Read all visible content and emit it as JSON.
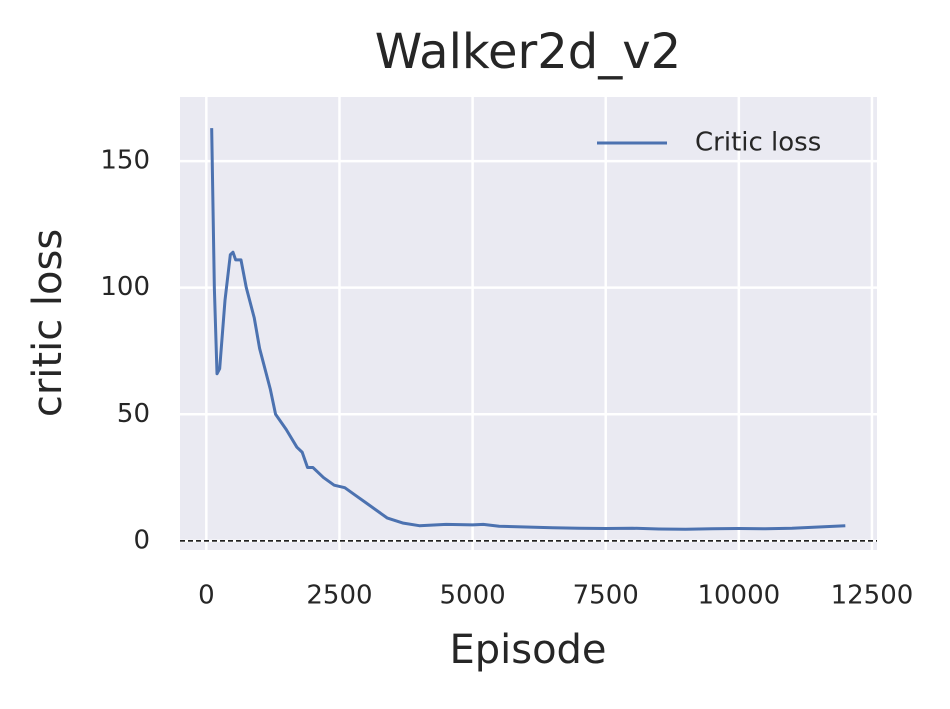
{
  "chart_data": {
    "type": "line",
    "title": "Walker2d_v2",
    "x_label": "Episode",
    "y_label": "critic loss",
    "x": [
      100,
      150,
      200,
      250,
      350,
      450,
      500,
      550,
      650,
      750,
      900,
      1000,
      1200,
      1300,
      1500,
      1700,
      1800,
      1900,
      2000,
      2200,
      2400,
      2600,
      2800,
      3000,
      3200,
      3400,
      3700,
      4000,
      4500,
      5000,
      5200,
      5500,
      6000,
      6500,
      7000,
      7500,
      8000,
      8500,
      9000,
      9500,
      10000,
      10500,
      11000,
      11500,
      12000
    ],
    "series": [
      {
        "name": "Critic loss",
        "color": "#4c72b0",
        "values": [
          163,
          100,
          66,
          68,
          95,
          113,
          114,
          111,
          111,
          100,
          88,
          76,
          60,
          50,
          44,
          37,
          35,
          29,
          29,
          25,
          22,
          21,
          18,
          15,
          12,
          9,
          7,
          6,
          6.5,
          6.3,
          6.5,
          5.8,
          5.5,
          5.2,
          5,
          4.9,
          5,
          4.7,
          4.6,
          4.8,
          4.9,
          4.8,
          5,
          5.5,
          6
        ]
      }
    ],
    "xlim": [
      -495,
      12595
    ],
    "ylim": [
      -3.6,
      175.3
    ],
    "xticks": [
      0,
      2500,
      5000,
      7500,
      10000,
      12500
    ],
    "yticks": [
      0,
      50,
      100,
      150
    ],
    "grid": true,
    "reference_line": 0,
    "legend": "upper right"
  }
}
